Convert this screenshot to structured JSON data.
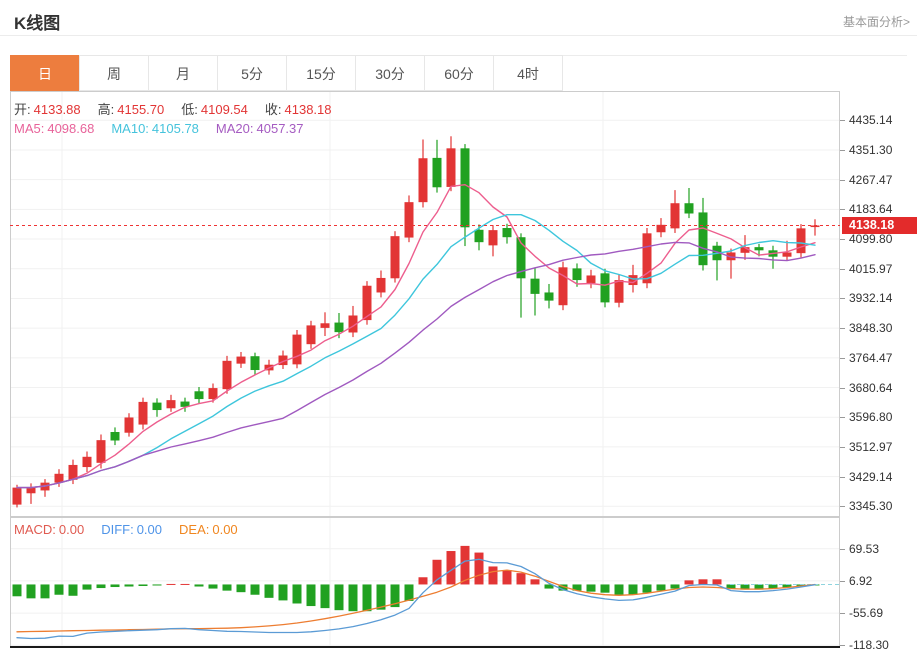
{
  "header": {
    "title": "K线图",
    "link": "基本面分析>"
  },
  "tabs": {
    "active": 0,
    "items": [
      {
        "key": "day",
        "label": "日"
      },
      {
        "key": "week",
        "label": "周"
      },
      {
        "key": "month",
        "label": "月"
      },
      {
        "key": "5min",
        "label": "5分"
      },
      {
        "key": "15min",
        "label": "15分"
      },
      {
        "key": "30min",
        "label": "30分"
      },
      {
        "key": "60min",
        "label": "60分"
      },
      {
        "key": "4hour",
        "label": "4时"
      }
    ]
  },
  "legend_ohlc": [
    {
      "key": "open",
      "label": "开:",
      "value": "4133.88"
    },
    {
      "key": "high",
      "label": "高:",
      "value": "4155.70"
    },
    {
      "key": "low",
      "label": "低:",
      "value": "4109.54"
    },
    {
      "key": "close",
      "label": "收:",
      "value": "4138.18"
    }
  ],
  "legend_ma": [
    {
      "key": "ma5",
      "label": "MA5:",
      "value": "4098.68",
      "color": "#e8639a"
    },
    {
      "key": "ma10",
      "label": "MA10:",
      "value": "4105.78",
      "color": "#45c3dc"
    },
    {
      "key": "ma20",
      "label": "MA20:",
      "value": "4057.37",
      "color": "#a55bc1"
    }
  ],
  "legend_macd": [
    {
      "key": "macd",
      "label": "MACD:",
      "value": "0.00",
      "color": "#e05a50"
    },
    {
      "key": "diff",
      "label": "DIFF:",
      "value": "0.00",
      "color": "#4f94e8"
    },
    {
      "key": "dea",
      "label": "DEA:",
      "value": "0.00",
      "color": "#f0861f"
    }
  ],
  "colors": {
    "up": "#e23535",
    "down": "#21a121",
    "ohlc_label": "#444444",
    "ohlc_value": "#e23535",
    "price_line": "#ee3333",
    "badge_bg": "#e32b2b",
    "ma5": "#ed5e8e",
    "ma10": "#3ec6dc",
    "ma20": "#a05ac0",
    "diff_line": "#5b9bd5",
    "dea_line": "#ed7d31",
    "zero_dash": "#8fd4de",
    "grid": "#f1f1f1",
    "plot_border": "#cccccc",
    "axis_text": "#333333",
    "tab_active_bg": "#ed7d3e"
  },
  "chart_data": {
    "type": "candlestick_with_macd",
    "title": "K线图",
    "timeframe": "日",
    "legend_position": "top-left-overlay",
    "grid": true,
    "price_axis_labels": [
      "4435.14",
      "4351.30",
      "4267.47",
      "4183.64",
      "4099.80",
      "4015.97",
      "3932.14",
      "3848.30",
      "3764.47",
      "3680.64",
      "3596.80",
      "3512.97",
      "3429.14",
      "3345.30"
    ],
    "price_axis_range": [
      3345.3,
      4435.14
    ],
    "macd_axis_labels": [
      "69.53",
      "6.92",
      "-55.69",
      "-118.30"
    ],
    "macd_axis_range": [
      -118.3,
      69.53
    ],
    "current_price": 4138.18,
    "current_price_label": "4138.18",
    "ohlc_current": {
      "open": 4133.88,
      "high": 4155.7,
      "low": 4109.54,
      "close": 4138.18
    },
    "ma_current": {
      "ma5": 4098.68,
      "ma10": 4105.78,
      "ma20": 4057.37
    },
    "macd_current": {
      "macd": 0.0,
      "diff": 0.0,
      "dea": 0.0
    },
    "ma_windows": [
      5,
      10,
      20
    ],
    "candles": [
      [
        3350,
        3406,
        3342,
        3398
      ],
      [
        3382,
        3410,
        3352,
        3398
      ],
      [
        3390,
        3422,
        3372,
        3412
      ],
      [
        3412,
        3450,
        3400,
        3437
      ],
      [
        3420,
        3477,
        3408,
        3462
      ],
      [
        3456,
        3500,
        3442,
        3485
      ],
      [
        3468,
        3548,
        3452,
        3532
      ],
      [
        3555,
        3568,
        3518,
        3531
      ],
      [
        3553,
        3608,
        3542,
        3596
      ],
      [
        3576,
        3652,
        3562,
        3640
      ],
      [
        3638,
        3650,
        3598,
        3617
      ],
      [
        3622,
        3660,
        3612,
        3645
      ],
      [
        3641,
        3652,
        3612,
        3626
      ],
      [
        3670,
        3682,
        3634,
        3648
      ],
      [
        3648,
        3692,
        3638,
        3679
      ],
      [
        3676,
        3770,
        3663,
        3756
      ],
      [
        3748,
        3781,
        3736,
        3768
      ],
      [
        3769,
        3779,
        3715,
        3730
      ],
      [
        3729,
        3759,
        3717,
        3745
      ],
      [
        3744,
        3785,
        3733,
        3771
      ],
      [
        3746,
        3843,
        3735,
        3830
      ],
      [
        3803,
        3869,
        3790,
        3856
      ],
      [
        3849,
        3893,
        3826,
        3862
      ],
      [
        3864,
        3891,
        3820,
        3837
      ],
      [
        3836,
        3911,
        3823,
        3884
      ],
      [
        3871,
        3981,
        3858,
        3968
      ],
      [
        3949,
        4011,
        3935,
        3990
      ],
      [
        3989,
        4122,
        3977,
        4108
      ],
      [
        4104,
        4223,
        4091,
        4204
      ],
      [
        4204,
        4381,
        4189,
        4328
      ],
      [
        4329,
        4380,
        4231,
        4246
      ],
      [
        4247,
        4390,
        4235,
        4356
      ],
      [
        4356,
        4368,
        4080,
        4133
      ],
      [
        4126,
        4141,
        4068,
        4091
      ],
      [
        4082,
        4139,
        4051,
        4125
      ],
      [
        4131,
        4143,
        4087,
        4105
      ],
      [
        4105,
        4116,
        3878,
        3989
      ],
      [
        3988,
        4018,
        3884,
        3945
      ],
      [
        3949,
        3973,
        3904,
        3926
      ],
      [
        3913,
        4036,
        3899,
        4020
      ],
      [
        4017,
        4031,
        3965,
        3984
      ],
      [
        3975,
        4013,
        3961,
        3997
      ],
      [
        4003,
        4016,
        3907,
        3921
      ],
      [
        3920,
        3999,
        3907,
        3984
      ],
      [
        3970,
        4027,
        3949,
        3998
      ],
      [
        3975,
        4131,
        3961,
        4116
      ],
      [
        4119,
        4159,
        4105,
        4140
      ],
      [
        4130,
        4238,
        4117,
        4201
      ],
      [
        4201,
        4244,
        4159,
        4172
      ],
      [
        4175,
        4216,
        4011,
        4026
      ],
      [
        4081,
        4092,
        3983,
        4040
      ],
      [
        4040,
        4073,
        3988,
        4062
      ],
      [
        4061,
        4111,
        4041,
        4077
      ],
      [
        4077,
        4086,
        4051,
        4068
      ],
      [
        4068,
        4081,
        4016,
        4050
      ],
      [
        4050,
        4095,
        4038,
        4062
      ],
      [
        4060,
        4142,
        4048,
        4130
      ],
      [
        4133.88,
        4155.7,
        4109.54,
        4138.18
      ]
    ],
    "macd_hist": [
      -23,
      -27,
      -27,
      -20,
      -22,
      -10,
      -7,
      -5,
      -4,
      -3,
      -2,
      1,
      1,
      -4,
      -8,
      -12,
      -15,
      -20,
      -26,
      -31,
      -37,
      -42,
      -46,
      -50,
      -52,
      -52,
      -49,
      -44,
      -32,
      14,
      48,
      65,
      75,
      62,
      35,
      28,
      22,
      10,
      -8,
      -12,
      -12,
      -14,
      -16,
      -20,
      -20,
      -16,
      -12,
      -8,
      8,
      10,
      10,
      -8,
      -10,
      -10,
      -8,
      -6,
      -4,
      -1
    ],
    "macd_diff": [
      -103.5,
      -105,
      -104.5,
      -100.5,
      -101,
      -94.5,
      -92.5,
      -91,
      -90,
      -89,
      -88,
      -86,
      -85.5,
      -88,
      -89.5,
      -91,
      -91.5,
      -92.5,
      -93.5,
      -93.5,
      -93.5,
      -92,
      -89.5,
      -86.5,
      -82,
      -76,
      -68.5,
      -59.5,
      -46.5,
      -16,
      9,
      27.5,
      45.5,
      49,
      42.5,
      42,
      35,
      21,
      2,
      -10,
      -18,
      -24,
      -28,
      -31,
      -30,
      -25,
      -19,
      -13,
      -2,
      0,
      -1,
      -12,
      -14,
      -14,
      -12,
      -9,
      -5,
      -0.5
    ],
    "macd_dea": [
      -92,
      -91.5,
      -91,
      -90.5,
      -90,
      -89.5,
      -89,
      -88.5,
      -88,
      -87.5,
      -87,
      -86.5,
      -86,
      -86,
      -85.5,
      -85,
      -84,
      -82.5,
      -80.5,
      -78,
      -75,
      -71,
      -66.5,
      -61.5,
      -56,
      -50,
      -44,
      -37.5,
      -30.5,
      -23,
      -15,
      -5,
      8,
      18,
      25,
      28,
      24,
      16,
      6,
      -4,
      -12,
      -17,
      -20,
      -21,
      -20,
      -17,
      -13,
      -9,
      -6,
      -5,
      -6,
      -8,
      -9,
      -9,
      -8,
      -6,
      -3,
      0
    ]
  }
}
